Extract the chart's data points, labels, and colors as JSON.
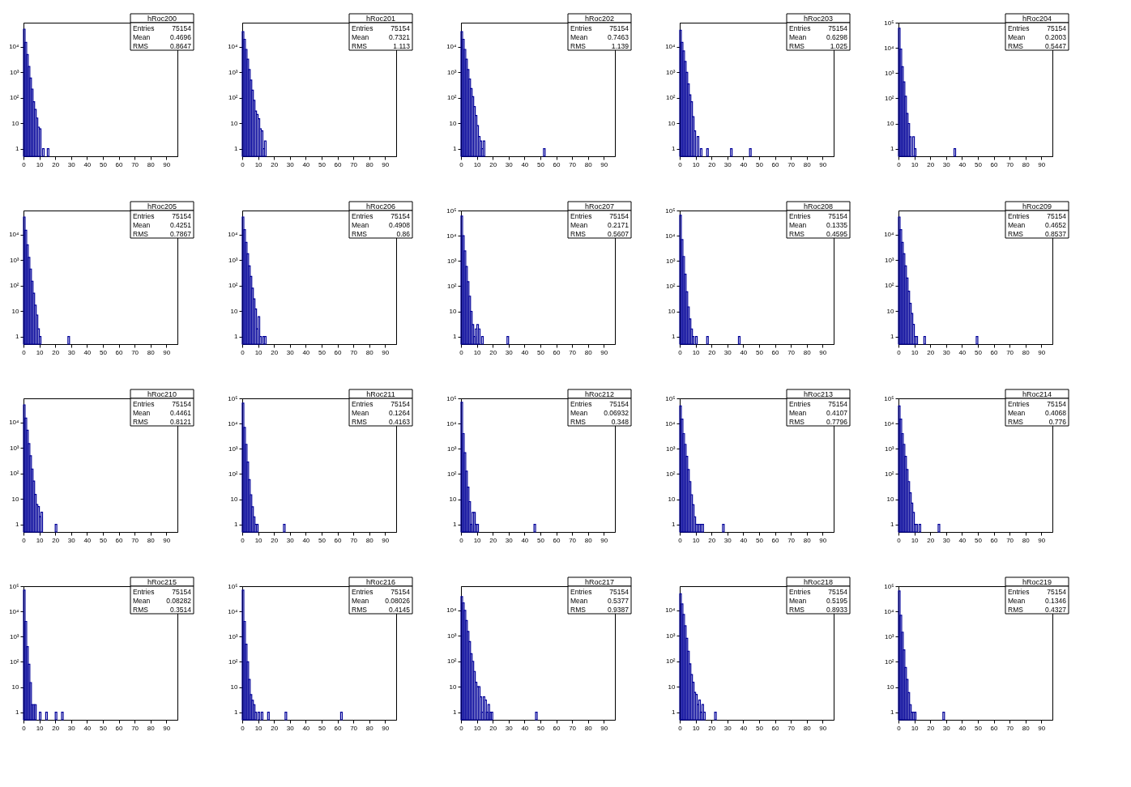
{
  "chart_data": [
    {
      "type": "histogram",
      "title": "hRoc200",
      "annotations": [
        "Entries",
        "75154",
        "Mean",
        "0.4696",
        "RMS",
        "0.8647"
      ],
      "color": "#000099",
      "log": true,
      "xlim": [
        0,
        97
      ],
      "xticks": [
        0,
        10,
        20,
        30,
        40,
        50,
        60,
        70,
        80,
        90
      ],
      "ylim": [
        0.5,
        90000
      ],
      "yticks": [
        1,
        10,
        {
          "value": 100,
          "label": "10²"
        },
        {
          "value": 1000,
          "label": "10³"
        },
        {
          "value": 10000,
          "label": "10⁴"
        }
      ],
      "bins": [
        0,
        1,
        2,
        3,
        4,
        5,
        6,
        7,
        8,
        9,
        10,
        11,
        12,
        13,
        14,
        15,
        16
      ],
      "values": [
        50000,
        15000,
        5000,
        1700,
        600,
        220,
        70,
        35,
        16,
        7,
        6,
        null,
        1,
        null,
        null,
        1
      ]
    },
    {
      "type": "histogram",
      "title": "hRoc201",
      "annotations": [
        "Entries",
        "75154",
        "Mean",
        "0.7321",
        "RMS",
        "1.113"
      ],
      "color": "#000099",
      "log": true,
      "xlim": [
        0,
        97
      ],
      "xticks": [
        0,
        10,
        20,
        30,
        40,
        50,
        60,
        70,
        80,
        90
      ],
      "ylim": [
        0.5,
        90000
      ],
      "yticks": [
        1,
        10,
        {
          "value": 100,
          "label": "10²"
        },
        {
          "value": 1000,
          "label": "10³"
        },
        {
          "value": 10000,
          "label": "10⁴"
        }
      ],
      "bins": [
        0,
        1,
        2,
        3,
        4,
        5,
        6,
        7,
        8,
        9,
        10,
        11,
        12,
        13,
        14,
        15
      ],
      "values": [
        40000,
        20000,
        8000,
        3300,
        1300,
        500,
        200,
        80,
        30,
        22,
        15,
        6,
        5,
        1,
        2
      ]
    },
    {
      "type": "histogram",
      "title": "hRoc202",
      "annotations": [
        "Entries",
        "75154",
        "Mean",
        "0.7463",
        "RMS",
        "1.139"
      ],
      "color": "#000099",
      "log": true,
      "xlim": [
        0,
        97
      ],
      "xticks": [
        0,
        10,
        20,
        30,
        40,
        50,
        60,
        70,
        80,
        90
      ],
      "ylim": [
        0.5,
        90000
      ],
      "yticks": [
        1,
        10,
        {
          "value": 100,
          "label": "10²"
        },
        {
          "value": 1000,
          "label": "10³"
        },
        {
          "value": 10000,
          "label": "10⁴"
        }
      ],
      "bins": [
        0,
        1,
        2,
        3,
        4,
        5,
        6,
        7,
        8,
        9,
        10,
        11,
        12,
        13,
        14,
        15,
        16,
        17,
        18,
        19,
        20,
        21,
        22,
        23,
        24,
        25,
        26,
        27,
        28,
        29,
        30,
        31,
        32,
        33,
        34,
        35,
        36,
        37,
        38,
        39,
        40,
        41,
        42,
        43,
        44,
        45,
        46,
        47,
        48,
        49,
        50,
        51,
        52,
        53
      ],
      "values": [
        40000,
        20000,
        8000,
        3300,
        1300,
        550,
        230,
        110,
        45,
        20,
        8,
        3,
        2,
        1,
        2,
        null,
        null,
        null,
        null,
        null,
        null,
        null,
        null,
        null,
        null,
        null,
        null,
        null,
        null,
        null,
        null,
        null,
        null,
        null,
        null,
        null,
        null,
        null,
        null,
        null,
        null,
        null,
        null,
        null,
        null,
        null,
        null,
        null,
        null,
        null,
        null,
        null,
        1
      ]
    },
    {
      "type": "histogram",
      "title": "hRoc203",
      "annotations": [
        "Entries",
        "75154",
        "Mean",
        "0.6298",
        "RMS",
        "1.025"
      ],
      "color": "#000099",
      "log": true,
      "xlim": [
        0,
        97
      ],
      "xticks": [
        0,
        10,
        20,
        30,
        40,
        50,
        60,
        70,
        80,
        90
      ],
      "ylim": [
        0.5,
        90000
      ],
      "yticks": [
        1,
        10,
        {
          "value": 100,
          "label": "10²"
        },
        {
          "value": 1000,
          "label": "10³"
        },
        {
          "value": 10000,
          "label": "10⁴"
        }
      ],
      "bins": [
        0,
        1,
        2,
        3,
        4,
        5,
        6,
        7,
        8,
        9,
        10,
        11,
        12,
        13,
        14,
        15,
        16,
        17,
        18,
        19,
        20,
        21,
        22,
        23,
        24,
        25,
        26,
        27,
        28,
        29,
        30,
        31,
        32,
        33,
        34,
        35,
        36,
        37,
        38,
        39,
        40,
        41,
        42,
        43,
        44,
        45
      ],
      "values": [
        45000,
        15000,
        7000,
        2700,
        1000,
        350,
        130,
        70,
        18,
        5,
        null,
        3,
        null,
        1,
        null,
        null,
        null,
        1,
        null,
        null,
        null,
        null,
        null,
        null,
        null,
        null,
        null,
        null,
        null,
        null,
        null,
        null,
        1,
        null,
        null,
        null,
        null,
        null,
        null,
        null,
        null,
        null,
        null,
        null,
        1
      ]
    },
    {
      "type": "histogram",
      "title": "hRoc204",
      "annotations": [
        "Entries",
        "75154",
        "Mean",
        "0.2003",
        "RMS",
        "0.5447"
      ],
      "color": "#000099",
      "log": true,
      "xlim": [
        0,
        97
      ],
      "xticks": [
        0,
        10,
        20,
        30,
        40,
        50,
        60,
        70,
        80,
        90
      ],
      "ylim": [
        0.5,
        100000
      ],
      "yticks": [
        1,
        10,
        {
          "value": 100,
          "label": "10²"
        },
        {
          "value": 1000,
          "label": "10³"
        },
        {
          "value": 10000,
          "label": "10⁴"
        },
        {
          "value": 100000,
          "label": "10⁵"
        }
      ],
      "bins": [
        0,
        1,
        2,
        3,
        4,
        5,
        6,
        7,
        8,
        9,
        10,
        11,
        12,
        13,
        14,
        15,
        16,
        17,
        18,
        19,
        20,
        21,
        22,
        23,
        24,
        25,
        26,
        27,
        28,
        29,
        30,
        31,
        32,
        33,
        34,
        35,
        36
      ],
      "values": [
        60000,
        9000,
        1800,
        450,
        120,
        25,
        10,
        3,
        null,
        3,
        1,
        null,
        null,
        null,
        null,
        null,
        null,
        null,
        null,
        null,
        null,
        null,
        null,
        null,
        null,
        null,
        null,
        null,
        null,
        null,
        null,
        null,
        null,
        null,
        null,
        1
      ]
    },
    {
      "type": "histogram",
      "title": "hRoc205",
      "annotations": [
        "Entries",
        "75154",
        "Mean",
        "0.4251",
        "RMS",
        "0.7867"
      ],
      "color": "#000099",
      "log": true,
      "xlim": [
        0,
        97
      ],
      "xticks": [
        0,
        10,
        20,
        30,
        40,
        50,
        60,
        70,
        80,
        90
      ],
      "ylim": [
        0.5,
        90000
      ],
      "yticks": [
        1,
        10,
        {
          "value": 100,
          "label": "10²"
        },
        {
          "value": 1000,
          "label": "10³"
        },
        {
          "value": 10000,
          "label": "10⁴"
        }
      ],
      "bins": [
        0,
        1,
        2,
        3,
        4,
        5,
        6,
        7,
        8,
        9,
        10,
        11,
        12,
        13,
        14,
        15,
        16,
        17,
        18,
        19,
        20,
        21,
        22,
        23,
        24,
        25,
        26,
        27,
        28,
        29
      ],
      "values": [
        50000,
        15000,
        4000,
        1300,
        450,
        150,
        50,
        17,
        7,
        2,
        1,
        null,
        null,
        null,
        null,
        null,
        null,
        null,
        null,
        null,
        null,
        null,
        null,
        null,
        null,
        null,
        null,
        null,
        1
      ]
    },
    {
      "type": "histogram",
      "title": "hRoc206",
      "annotations": [
        "Entries",
        "75154",
        "Mean",
        "0.4908",
        "RMS",
        "0.86"
      ],
      "color": "#000099",
      "log": true,
      "xlim": [
        0,
        97
      ],
      "xticks": [
        0,
        10,
        20,
        30,
        40,
        50,
        60,
        70,
        80,
        90
      ],
      "ylim": [
        0.5,
        90000
      ],
      "yticks": [
        1,
        10,
        {
          "value": 100,
          "label": "10²"
        },
        {
          "value": 1000,
          "label": "10³"
        },
        {
          "value": 10000,
          "label": "10⁴"
        }
      ],
      "bins": [
        0,
        1,
        2,
        3,
        4,
        5,
        6,
        7,
        8,
        9,
        10,
        11,
        12,
        13,
        14,
        15
      ],
      "values": [
        50000,
        16000,
        5000,
        1800,
        600,
        230,
        80,
        30,
        12,
        2,
        6,
        1,
        null,
        1,
        1
      ]
    },
    {
      "type": "histogram",
      "title": "hRoc207",
      "annotations": [
        "Entries",
        "75154",
        "Mean",
        "0.2171",
        "RMS",
        "0.5607"
      ],
      "color": "#000099",
      "log": true,
      "xlim": [
        0,
        97
      ],
      "xticks": [
        0,
        10,
        20,
        30,
        40,
        50,
        60,
        70,
        80,
        90
      ],
      "ylim": [
        0.5,
        100000
      ],
      "yticks": [
        1,
        10,
        {
          "value": 100,
          "label": "10²"
        },
        {
          "value": 1000,
          "label": "10³"
        },
        {
          "value": 10000,
          "label": "10⁴"
        },
        {
          "value": 100000,
          "label": "10⁵"
        }
      ],
      "bins": [
        0,
        1,
        2,
        3,
        4,
        5,
        6,
        7,
        8,
        9,
        10,
        11,
        12,
        13,
        14,
        15,
        16,
        17,
        18,
        19,
        20,
        21,
        22,
        23,
        24,
        25,
        26,
        27,
        28,
        29,
        30
      ],
      "values": [
        60000,
        10000,
        2500,
        600,
        150,
        40,
        10,
        3,
        1,
        2,
        3,
        2,
        null,
        1,
        null,
        null,
        null,
        null,
        null,
        null,
        null,
        null,
        null,
        null,
        null,
        null,
        null,
        null,
        null,
        1
      ]
    },
    {
      "type": "histogram",
      "title": "hRoc208",
      "annotations": [
        "Entries",
        "75154",
        "Mean",
        "0.1335",
        "RMS",
        "0.4595"
      ],
      "color": "#000099",
      "log": true,
      "xlim": [
        0,
        97
      ],
      "xticks": [
        0,
        10,
        20,
        30,
        40,
        50,
        60,
        70,
        80,
        90
      ],
      "ylim": [
        0.5,
        100000
      ],
      "yticks": [
        1,
        10,
        {
          "value": 100,
          "label": "10²"
        },
        {
          "value": 1000,
          "label": "10³"
        },
        {
          "value": 10000,
          "label": "10⁴"
        },
        {
          "value": 100000,
          "label": "10⁵"
        }
      ],
      "bins": [
        0,
        1,
        2,
        3,
        4,
        5,
        6,
        7,
        8,
        9,
        10,
        11,
        12,
        13,
        14,
        15,
        16,
        17,
        18,
        19,
        20,
        21,
        22,
        23,
        24,
        25,
        26,
        27,
        28,
        29,
        30,
        31,
        32,
        33,
        34,
        35,
        36,
        37,
        38
      ],
      "values": [
        65000,
        7000,
        1500,
        300,
        60,
        15,
        5,
        2,
        1,
        null,
        1,
        null,
        null,
        null,
        null,
        null,
        null,
        1,
        null,
        null,
        null,
        null,
        null,
        null,
        null,
        null,
        null,
        null,
        null,
        null,
        null,
        null,
        null,
        null,
        null,
        null,
        null,
        1
      ]
    },
    {
      "type": "histogram",
      "title": "hRoc209",
      "annotations": [
        "Entries",
        "75154",
        "Mean",
        "0.4652",
        "RMS",
        "0.8537"
      ],
      "color": "#000099",
      "log": true,
      "xlim": [
        0,
        97
      ],
      "xticks": [
        0,
        10,
        20,
        30,
        40,
        50,
        60,
        70,
        80,
        90
      ],
      "ylim": [
        0.5,
        90000
      ],
      "yticks": [
        1,
        10,
        {
          "value": 100,
          "label": "10²"
        },
        {
          "value": 1000,
          "label": "10³"
        },
        {
          "value": 10000,
          "label": "10⁴"
        }
      ],
      "bins": [
        0,
        1,
        2,
        3,
        4,
        5,
        6,
        7,
        8,
        9,
        10,
        11,
        12,
        13,
        14,
        15,
        16,
        17,
        18,
        19,
        20,
        21,
        22,
        23,
        24,
        25,
        26,
        27,
        28,
        29,
        30,
        31,
        32,
        33,
        34,
        35,
        36,
        37,
        38,
        39,
        40,
        41,
        42,
        43,
        44,
        45,
        46,
        47,
        48,
        49,
        50
      ],
      "values": [
        50000,
        16000,
        5000,
        1800,
        600,
        200,
        60,
        20,
        8,
        3,
        1,
        1,
        null,
        null,
        null,
        null,
        1,
        null,
        null,
        null,
        null,
        null,
        null,
        null,
        null,
        null,
        null,
        null,
        null,
        null,
        null,
        null,
        null,
        null,
        null,
        null,
        null,
        null,
        null,
        null,
        null,
        null,
        null,
        null,
        null,
        null,
        null,
        null,
        null,
        1
      ]
    },
    {
      "type": "histogram",
      "title": "hRoc210",
      "annotations": [
        "Entries",
        "75154",
        "Mean",
        "0.4461",
        "RMS",
        "0.8121"
      ],
      "color": "#000099",
      "log": true,
      "xlim": [
        0,
        97
      ],
      "xticks": [
        0,
        10,
        20,
        30,
        40,
        50,
        60,
        70,
        80,
        90
      ],
      "ylim": [
        0.5,
        90000
      ],
      "yticks": [
        1,
        10,
        {
          "value": 100,
          "label": "10²"
        },
        {
          "value": 1000,
          "label": "10³"
        },
        {
          "value": 10000,
          "label": "10⁴"
        }
      ],
      "bins": [
        0,
        1,
        2,
        3,
        4,
        5,
        6,
        7,
        8,
        9,
        10,
        11,
        12,
        13,
        14,
        15,
        16,
        17,
        18,
        19,
        20,
        21
      ],
      "values": [
        50000,
        15000,
        5000,
        1500,
        500,
        150,
        50,
        15,
        6,
        5,
        2,
        3,
        null,
        null,
        null,
        null,
        null,
        null,
        null,
        null,
        1
      ]
    },
    {
      "type": "histogram",
      "title": "hRoc211",
      "annotations": [
        "Entries",
        "75154",
        "Mean",
        "0.1264",
        "RMS",
        "0.4163"
      ],
      "color": "#000099",
      "log": true,
      "xlim": [
        0,
        97
      ],
      "xticks": [
        0,
        10,
        20,
        30,
        40,
        50,
        60,
        70,
        80,
        90
      ],
      "ylim": [
        0.5,
        100000
      ],
      "yticks": [
        1,
        10,
        {
          "value": 100,
          "label": "10²"
        },
        {
          "value": 1000,
          "label": "10³"
        },
        {
          "value": 10000,
          "label": "10⁴"
        },
        {
          "value": 100000,
          "label": "10⁵"
        }
      ],
      "bins": [
        0,
        1,
        2,
        3,
        4,
        5,
        6,
        7,
        8,
        9,
        10,
        11,
        12,
        13,
        14,
        15,
        16,
        17,
        18,
        19,
        20,
        21,
        22,
        23,
        24,
        25,
        26,
        27
      ],
      "values": [
        65000,
        7000,
        1500,
        300,
        60,
        15,
        5,
        2,
        1,
        1,
        null,
        null,
        null,
        null,
        null,
        null,
        null,
        null,
        null,
        null,
        null,
        null,
        null,
        null,
        null,
        null,
        1
      ]
    },
    {
      "type": "histogram",
      "title": "hRoc212",
      "annotations": [
        "Entries",
        "75154",
        "Mean",
        "0.06932",
        "RMS",
        "0.348"
      ],
      "color": "#000099",
      "log": true,
      "xlim": [
        0,
        97
      ],
      "xticks": [
        0,
        10,
        20,
        30,
        40,
        50,
        60,
        70,
        80,
        90
      ],
      "ylim": [
        0.5,
        100000
      ],
      "yticks": [
        1,
        10,
        {
          "value": 100,
          "label": "10²"
        },
        {
          "value": 1000,
          "label": "10³"
        },
        {
          "value": 10000,
          "label": "10⁴"
        },
        {
          "value": 100000,
          "label": "10⁵"
        }
      ],
      "bins": [
        0,
        1,
        2,
        3,
        4,
        5,
        6,
        7,
        8,
        9,
        10,
        11,
        12,
        13,
        14,
        15,
        16,
        17,
        18,
        19,
        20,
        21,
        22,
        23,
        24,
        25,
        26,
        27,
        28,
        29,
        30,
        31,
        32,
        33,
        34,
        35,
        36,
        37,
        38,
        39,
        40,
        41,
        42,
        43,
        44,
        45,
        46,
        47
      ],
      "values": [
        70000,
        4000,
        700,
        130,
        30,
        8,
        1,
        3,
        3,
        1,
        1,
        null,
        null,
        null,
        null,
        null,
        null,
        null,
        null,
        null,
        null,
        null,
        null,
        null,
        null,
        null,
        null,
        null,
        null,
        null,
        null,
        null,
        null,
        null,
        null,
        null,
        null,
        null,
        null,
        null,
        null,
        null,
        null,
        null,
        null,
        null,
        1
      ]
    },
    {
      "type": "histogram",
      "title": "hRoc213",
      "annotations": [
        "Entries",
        "75154",
        "Mean",
        "0.4107",
        "RMS",
        "0.7796"
      ],
      "color": "#000099",
      "log": true,
      "xlim": [
        0,
        97
      ],
      "xticks": [
        0,
        10,
        20,
        30,
        40,
        50,
        60,
        70,
        80,
        90
      ],
      "ylim": [
        0.5,
        100000
      ],
      "yticks": [
        1,
        10,
        {
          "value": 100,
          "label": "10²"
        },
        {
          "value": 1000,
          "label": "10³"
        },
        {
          "value": 10000,
          "label": "10⁴"
        },
        {
          "value": 100000,
          "label": "10⁵"
        }
      ],
      "bins": [
        0,
        1,
        2,
        3,
        4,
        5,
        6,
        7,
        8,
        9,
        10,
        11,
        12,
        13,
        14,
        15,
        16,
        17,
        18,
        19,
        20,
        21,
        22,
        23,
        24,
        25,
        26,
        27,
        28
      ],
      "values": [
        50000,
        15000,
        4000,
        1500,
        500,
        150,
        50,
        15,
        6,
        2,
        1,
        1,
        1,
        1,
        1,
        null,
        null,
        null,
        null,
        null,
        null,
        null,
        null,
        null,
        null,
        null,
        null,
        1
      ]
    },
    {
      "type": "histogram",
      "title": "hRoc214",
      "annotations": [
        "Entries",
        "75154",
        "Mean",
        "0.4068",
        "RMS",
        "0.776"
      ],
      "color": "#000099",
      "log": true,
      "xlim": [
        0,
        97
      ],
      "xticks": [
        0,
        10,
        20,
        30,
        40,
        50,
        60,
        70,
        80,
        90
      ],
      "ylim": [
        0.5,
        100000
      ],
      "yticks": [
        1,
        10,
        {
          "value": 100,
          "label": "10²"
        },
        {
          "value": 1000,
          "label": "10³"
        },
        {
          "value": 10000,
          "label": "10⁴"
        },
        {
          "value": 100000,
          "label": "10⁵"
        }
      ],
      "bins": [
        0,
        1,
        2,
        3,
        4,
        5,
        6,
        7,
        8,
        9,
        10,
        11,
        12,
        13,
        14,
        15,
        16,
        17,
        18,
        19,
        20,
        21,
        22,
        23,
        24,
        25,
        26
      ],
      "values": [
        50000,
        15000,
        4000,
        1500,
        500,
        150,
        50,
        18,
        7,
        3,
        1,
        1,
        null,
        1,
        null,
        null,
        null,
        null,
        null,
        null,
        null,
        null,
        null,
        null,
        null,
        1
      ]
    },
    {
      "type": "histogram",
      "title": "hRoc215",
      "annotations": [
        "Entries",
        "75154",
        "Mean",
        "0.08282",
        "RMS",
        "0.3514"
      ],
      "color": "#000099",
      "log": true,
      "xlim": [
        0,
        97
      ],
      "xticks": [
        0,
        10,
        20,
        30,
        40,
        50,
        60,
        70,
        80,
        90
      ],
      "ylim": [
        0.5,
        100000
      ],
      "yticks": [
        1,
        10,
        {
          "value": 100,
          "label": "10²"
        },
        {
          "value": 1000,
          "label": "10³"
        },
        {
          "value": 10000,
          "label": "10⁴"
        },
        {
          "value": 100000,
          "label": "10⁵"
        }
      ],
      "bins": [
        0,
        1,
        2,
        3,
        4,
        5,
        6,
        7,
        8,
        9,
        10,
        11,
        12,
        13,
        14,
        15,
        16,
        17,
        18,
        19,
        20,
        21,
        22,
        23,
        24,
        25
      ],
      "values": [
        70000,
        4000,
        400,
        80,
        15,
        2,
        2,
        2,
        null,
        null,
        1,
        null,
        null,
        null,
        1,
        null,
        null,
        null,
        null,
        null,
        1,
        null,
        null,
        null,
        1
      ]
    },
    {
      "type": "histogram",
      "title": "hRoc216",
      "annotations": [
        "Entries",
        "75154",
        "Mean",
        "0.08026",
        "RMS",
        "0.4145"
      ],
      "color": "#000099",
      "log": true,
      "xlim": [
        0,
        97
      ],
      "xticks": [
        0,
        10,
        20,
        30,
        40,
        50,
        60,
        70,
        80,
        90
      ],
      "ylim": [
        0.5,
        100000
      ],
      "yticks": [
        1,
        10,
        {
          "value": 100,
          "label": "10²"
        },
        {
          "value": 1000,
          "label": "10³"
        },
        {
          "value": 10000,
          "label": "10⁴"
        },
        {
          "value": 100000,
          "label": "10⁵"
        }
      ],
      "bins": [
        0,
        1,
        2,
        3,
        4,
        5,
        6,
        7,
        8,
        9,
        10,
        11,
        12,
        13,
        14,
        15,
        16,
        17,
        18,
        19,
        20,
        21,
        22,
        23,
        24,
        25,
        26,
        27,
        28,
        29,
        30,
        31,
        32,
        33,
        34,
        35,
        36,
        37,
        38,
        39,
        40,
        41,
        42,
        43,
        44,
        45,
        46,
        47,
        48,
        49,
        50,
        51,
        52,
        53,
        54,
        55,
        56,
        57,
        58,
        59,
        60,
        61,
        62,
        63
      ],
      "values": [
        70000,
        4000,
        500,
        100,
        20,
        5,
        3,
        2,
        1,
        null,
        1,
        null,
        1,
        null,
        null,
        null,
        1,
        null,
        null,
        null,
        null,
        null,
        null,
        null,
        null,
        null,
        null,
        1,
        null,
        null,
        null,
        null,
        null,
        null,
        null,
        null,
        null,
        null,
        null,
        null,
        null,
        null,
        null,
        null,
        null,
        null,
        null,
        null,
        null,
        null,
        null,
        null,
        null,
        null,
        null,
        null,
        null,
        null,
        null,
        null,
        null,
        null,
        1
      ]
    },
    {
      "type": "histogram",
      "title": "hRoc217",
      "annotations": [
        "Entries",
        "75154",
        "Mean",
        "0.5377",
        "RMS",
        "0.9387"
      ],
      "color": "#000099",
      "log": true,
      "xlim": [
        0,
        97
      ],
      "xticks": [
        0,
        10,
        20,
        30,
        40,
        50,
        60,
        70,
        80,
        90
      ],
      "ylim": [
        0.5,
        90000
      ],
      "yticks": [
        1,
        10,
        {
          "value": 100,
          "label": "10²"
        },
        {
          "value": 1000,
          "label": "10³"
        },
        {
          "value": 10000,
          "label": "10⁴"
        }
      ],
      "bins": [
        0,
        1,
        2,
        3,
        4,
        5,
        6,
        7,
        8,
        9,
        10,
        11,
        12,
        13,
        14,
        15,
        16,
        17,
        18,
        19,
        20,
        21,
        22,
        23,
        24,
        25,
        26,
        27,
        28,
        29,
        30,
        31,
        32,
        33,
        34,
        35,
        36,
        37,
        38,
        39,
        40,
        41,
        42,
        43,
        44,
        45,
        46,
        47,
        48
      ],
      "values": [
        35000,
        20000,
        10000,
        4000,
        1500,
        600,
        200,
        100,
        40,
        15,
        10,
        10,
        4,
        1,
        4,
        3,
        1,
        2,
        1,
        1,
        null,
        null,
        null,
        null,
        null,
        null,
        null,
        null,
        null,
        null,
        null,
        null,
        null,
        null,
        null,
        null,
        null,
        null,
        null,
        null,
        null,
        null,
        null,
        null,
        null,
        null,
        null,
        1
      ]
    },
    {
      "type": "histogram",
      "title": "hRoc218",
      "annotations": [
        "Entries",
        "75154",
        "Mean",
        "0.5195",
        "RMS",
        "0.8933"
      ],
      "color": "#000099",
      "log": true,
      "xlim": [
        0,
        97
      ],
      "xticks": [
        0,
        10,
        20,
        30,
        40,
        50,
        60,
        70,
        80,
        90
      ],
      "ylim": [
        0.5,
        90000
      ],
      "yticks": [
        1,
        10,
        {
          "value": 100,
          "label": "10²"
        },
        {
          "value": 1000,
          "label": "10³"
        },
        {
          "value": 10000,
          "label": "10⁴"
        }
      ],
      "bins": [
        0,
        1,
        2,
        3,
        4,
        5,
        6,
        7,
        8,
        9,
        10,
        11,
        12,
        13,
        14,
        15,
        16,
        17,
        18,
        19,
        20,
        21,
        22,
        23
      ],
      "values": [
        45000,
        18000,
        7000,
        2500,
        800,
        250,
        80,
        30,
        15,
        6,
        5,
        2,
        3,
        1,
        2,
        1,
        null,
        null,
        null,
        null,
        null,
        null,
        1
      ]
    },
    {
      "type": "histogram",
      "title": "hRoc219",
      "annotations": [
        "Entries",
        "75154",
        "Mean",
        "0.1346",
        "RMS",
        "0.4327"
      ],
      "color": "#000099",
      "log": true,
      "xlim": [
        0,
        97
      ],
      "xticks": [
        0,
        10,
        20,
        30,
        40,
        50,
        60,
        70,
        80,
        90
      ],
      "ylim": [
        0.5,
        100000
      ],
      "yticks": [
        1,
        10,
        {
          "value": 100,
          "label": "10²"
        },
        {
          "value": 1000,
          "label": "10³"
        },
        {
          "value": 10000,
          "label": "10⁴"
        },
        {
          "value": 100000,
          "label": "10⁵"
        }
      ],
      "bins": [
        0,
        1,
        2,
        3,
        4,
        5,
        6,
        7,
        8,
        9,
        10,
        11,
        12,
        13,
        14,
        15,
        16,
        17,
        18,
        19,
        20,
        21,
        22,
        23,
        24,
        25,
        26,
        27,
        28,
        29
      ],
      "values": [
        65000,
        7000,
        1500,
        300,
        60,
        20,
        6,
        2,
        1,
        1,
        1,
        null,
        null,
        null,
        null,
        null,
        null,
        null,
        null,
        null,
        null,
        null,
        null,
        null,
        null,
        null,
        null,
        null,
        1
      ]
    }
  ]
}
